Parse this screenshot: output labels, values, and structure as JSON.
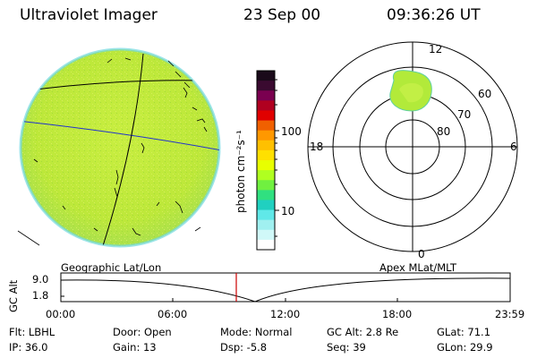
{
  "header": {
    "title": "Ultraviolet Imager",
    "date": "23 Sep 00",
    "time": "09:36:26 UT"
  },
  "colorbar": {
    "unit_label": "photon cm⁻²s⁻¹",
    "ticks": [
      "100",
      "10"
    ],
    "colors": [
      "#1a0a1a",
      "#3a0a30",
      "#7a0050",
      "#b00020",
      "#e00000",
      "#f06000",
      "#ff9800",
      "#ffc000",
      "#ffe000",
      "#e8ff00",
      "#b0ff20",
      "#70f040",
      "#30e080",
      "#20d0c0",
      "#60e8e8",
      "#a0f0f0",
      "#d0f8f8",
      "#ffffff"
    ]
  },
  "polar_plot": {
    "mlt_labels": {
      "top": "12",
      "left": "18",
      "right": "6",
      "bottom": "0"
    },
    "lat_labels": [
      "60",
      "70",
      "80"
    ]
  },
  "timeline": {
    "axis_label": "GC Alt",
    "y_ticks": [
      "9.0",
      "1.8"
    ],
    "left_title": "Geographic Lat/Lon",
    "right_title": "Apex MLat/MLT",
    "x_ticks": [
      "00:00",
      "06:00",
      "12:00",
      "18:00",
      "23:59"
    ],
    "marker_color": "#cc0000"
  },
  "info": {
    "flt": "Flt: LBHL",
    "ip": "IP: 36.0",
    "door": "Door: Open",
    "gain": "Gain: 13",
    "mode": "Mode: Normal",
    "dsp": "Dsp:    -5.8",
    "gcalt": "GC Alt: 2.8 Re",
    "seq": "Seq: 39",
    "glat": "GLat:  71.1",
    "glon": "GLon:  29.9"
  }
}
